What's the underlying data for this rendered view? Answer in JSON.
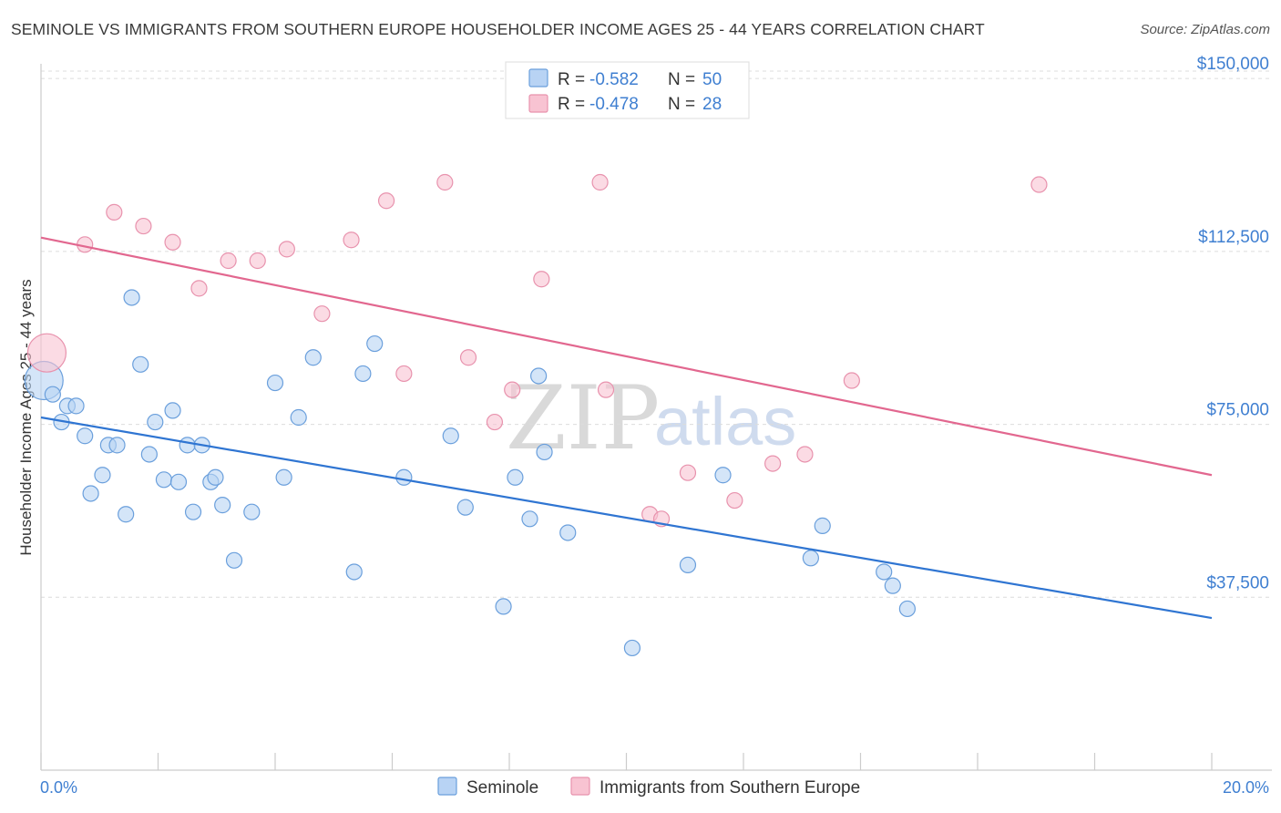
{
  "title": "SEMINOLE VS IMMIGRANTS FROM SOUTHERN EUROPE HOUSEHOLDER INCOME AGES 25 - 44 YEARS CORRELATION CHART",
  "source": "Source: ZipAtlas.com",
  "watermark": {
    "part1": "ZIP",
    "part2": "atlas"
  },
  "colors": {
    "seminole_fill": "#b8d3f4",
    "seminole_stroke": "#6a9fdc",
    "seminole_line": "#2f75d2",
    "immigrants_fill": "#f8c3d2",
    "immigrants_stroke": "#e892ad",
    "immigrants_line": "#e2678f",
    "accent_text": "#3f7fd1"
  },
  "legend_top": {
    "r_label": "R =",
    "n_label": "N =",
    "rows": [
      {
        "series": "Seminole",
        "r": "-0.582",
        "n": "50"
      },
      {
        "series": "Immigrants from Southern Europe",
        "r": "-0.478",
        "n": "28"
      }
    ]
  },
  "legend_bottom": [
    "Seminole",
    "Immigrants from Southern Europe"
  ],
  "chart_data": {
    "type": "scatter",
    "title": "SEMINOLE VS IMMIGRANTS FROM SOUTHERN EUROPE HOUSEHOLDER INCOME AGES 25 - 44 YEARS CORRELATION CHART",
    "xlabel": "",
    "ylabel": "Householder Income Ages 25 - 44 years",
    "xlim": [
      0,
      20
    ],
    "ylim": [
      0,
      153000
    ],
    "x_tick_labels": {
      "min": "0.0%",
      "max": "20.0%"
    },
    "y_ticks": [
      {
        "value": 37500,
        "label": "$37,500"
      },
      {
        "value": 75000,
        "label": "$75,000"
      },
      {
        "value": 112500,
        "label": "$112,500"
      },
      {
        "value": 150000,
        "label": "$150,000"
      }
    ],
    "grid": "horizontal dashed",
    "legend_position": "top-center",
    "series": [
      {
        "name": "Seminole",
        "r": -0.582,
        "n": 50,
        "trend": {
          "x": [
            0,
            20
          ],
          "y": [
            76500,
            33000
          ]
        },
        "points": [
          {
            "x": 0.05,
            "y": 84500,
            "big": true
          },
          {
            "x": 0.2,
            "y": 81500
          },
          {
            "x": 0.35,
            "y": 75500
          },
          {
            "x": 0.45,
            "y": 79000
          },
          {
            "x": 0.6,
            "y": 79000
          },
          {
            "x": 0.75,
            "y": 72500
          },
          {
            "x": 0.85,
            "y": 60000
          },
          {
            "x": 1.05,
            "y": 64000
          },
          {
            "x": 1.15,
            "y": 70500
          },
          {
            "x": 1.3,
            "y": 70500
          },
          {
            "x": 1.45,
            "y": 55500
          },
          {
            "x": 1.55,
            "y": 102500
          },
          {
            "x": 1.7,
            "y": 88000
          },
          {
            "x": 1.85,
            "y": 68500
          },
          {
            "x": 1.95,
            "y": 75500
          },
          {
            "x": 2.1,
            "y": 63000
          },
          {
            "x": 2.25,
            "y": 78000
          },
          {
            "x": 2.35,
            "y": 62500
          },
          {
            "x": 2.5,
            "y": 70500
          },
          {
            "x": 2.6,
            "y": 56000
          },
          {
            "x": 2.75,
            "y": 70500
          },
          {
            "x": 2.9,
            "y": 62500
          },
          {
            "x": 2.98,
            "y": 63500
          },
          {
            "x": 3.1,
            "y": 57500
          },
          {
            "x": 3.3,
            "y": 45500
          },
          {
            "x": 3.6,
            "y": 56000
          },
          {
            "x": 4.0,
            "y": 84000
          },
          {
            "x": 4.15,
            "y": 63500
          },
          {
            "x": 4.4,
            "y": 76500
          },
          {
            "x": 4.65,
            "y": 89500
          },
          {
            "x": 5.35,
            "y": 43000
          },
          {
            "x": 5.5,
            "y": 86000
          },
          {
            "x": 5.7,
            "y": 92500
          },
          {
            "x": 6.2,
            "y": 63500
          },
          {
            "x": 7.0,
            "y": 72500
          },
          {
            "x": 7.25,
            "y": 57000
          },
          {
            "x": 7.9,
            "y": 35500
          },
          {
            "x": 8.1,
            "y": 63500
          },
          {
            "x": 8.35,
            "y": 54500
          },
          {
            "x": 8.5,
            "y": 85500
          },
          {
            "x": 8.6,
            "y": 69000
          },
          {
            "x": 9.0,
            "y": 51500
          },
          {
            "x": 10.1,
            "y": 26500
          },
          {
            "x": 11.05,
            "y": 44500
          },
          {
            "x": 11.65,
            "y": 64000
          },
          {
            "x": 13.15,
            "y": 46000
          },
          {
            "x": 13.35,
            "y": 53000
          },
          {
            "x": 14.4,
            "y": 43000
          },
          {
            "x": 14.55,
            "y": 40000
          },
          {
            "x": 14.8,
            "y": 35000
          }
        ]
      },
      {
        "name": "Immigrants from Southern Europe",
        "r": -0.478,
        "n": 28,
        "trend": {
          "x": [
            0,
            20
          ],
          "y": [
            115500,
            64000
          ]
        },
        "points": [
          {
            "x": 0.1,
            "y": 90500,
            "big": true
          },
          {
            "x": 0.75,
            "y": 114000
          },
          {
            "x": 1.25,
            "y": 121000
          },
          {
            "x": 1.75,
            "y": 118000
          },
          {
            "x": 2.25,
            "y": 114500
          },
          {
            "x": 2.7,
            "y": 104500
          },
          {
            "x": 3.2,
            "y": 110500
          },
          {
            "x": 3.7,
            "y": 110500
          },
          {
            "x": 4.2,
            "y": 113000
          },
          {
            "x": 4.8,
            "y": 99000
          },
          {
            "x": 5.3,
            "y": 115000
          },
          {
            "x": 5.9,
            "y": 123500
          },
          {
            "x": 6.2,
            "y": 86000
          },
          {
            "x": 6.9,
            "y": 127500
          },
          {
            "x": 7.3,
            "y": 89500
          },
          {
            "x": 7.75,
            "y": 75500
          },
          {
            "x": 8.05,
            "y": 82500
          },
          {
            "x": 8.55,
            "y": 106500
          },
          {
            "x": 9.55,
            "y": 127500
          },
          {
            "x": 9.65,
            "y": 82500
          },
          {
            "x": 10.4,
            "y": 55500
          },
          {
            "x": 10.6,
            "y": 54500
          },
          {
            "x": 11.05,
            "y": 64500
          },
          {
            "x": 11.85,
            "y": 58500
          },
          {
            "x": 12.5,
            "y": 66500
          },
          {
            "x": 13.05,
            "y": 68500
          },
          {
            "x": 13.85,
            "y": 84500
          },
          {
            "x": 17.05,
            "y": 127000
          }
        ]
      }
    ]
  }
}
